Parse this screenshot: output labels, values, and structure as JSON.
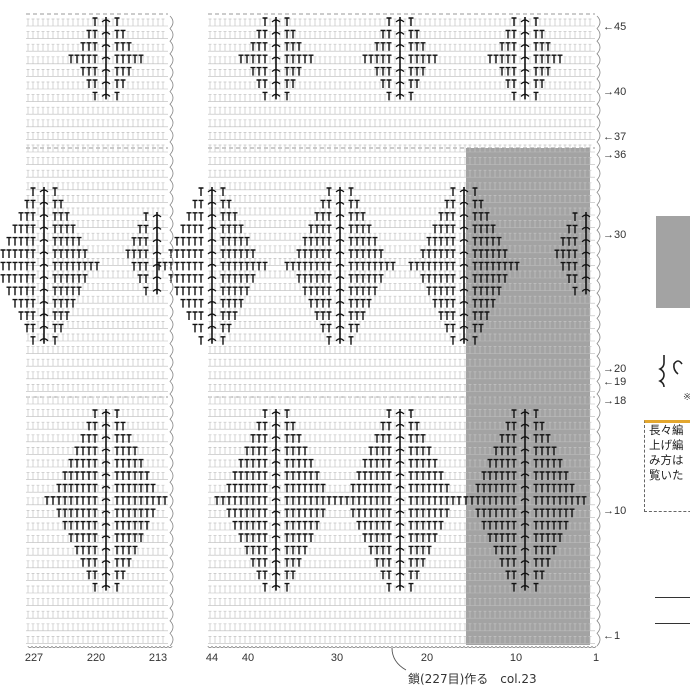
{
  "diagram": {
    "row_labels": [
      {
        "row": 45,
        "text": "←45"
      },
      {
        "row": 40,
        "text": "→40"
      },
      {
        "row": 37,
        "text": "←37"
      },
      {
        "row": 36,
        "text": "→36"
      },
      {
        "row": 30,
        "text": "→30"
      },
      {
        "row": 20,
        "text": "→20"
      },
      {
        "row": 19,
        "text": "←19"
      },
      {
        "row": 18,
        "text": "→18"
      },
      {
        "row": 10,
        "text": "→10"
      },
      {
        "row": 1,
        "text": "←1"
      }
    ],
    "col_labels": [
      {
        "col": 227,
        "text": "227"
      },
      {
        "col": 220,
        "text": "220"
      },
      {
        "col": 213,
        "text": "213"
      },
      {
        "col": 44,
        "text": "44"
      },
      {
        "col": 40,
        "text": "40"
      },
      {
        "col": 30,
        "text": "30"
      },
      {
        "col": 20,
        "text": "20"
      },
      {
        "col": 10,
        "text": "10"
      },
      {
        "col": 1,
        "text": "1"
      }
    ],
    "caption": "鎖(227目)作る　col.23",
    "highlight_color": "#a3a3a3",
    "note_lines": [
      "長々編",
      "上げ編",
      "み方は",
      "覧いた"
    ],
    "legend_mark": "※",
    "note_border_color": "#e3a72f"
  }
}
